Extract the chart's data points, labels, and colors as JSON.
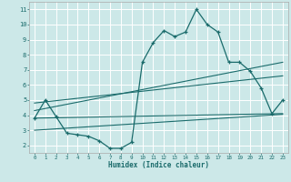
{
  "xlabel": "Humidex (Indice chaleur)",
  "bg_color": "#cce8e8",
  "grid_color": "#ffffff",
  "line_color": "#1a6b6b",
  "xlim": [
    -0.5,
    23.5
  ],
  "ylim": [
    1.5,
    11.5
  ],
  "yticks": [
    2,
    3,
    4,
    5,
    6,
    7,
    8,
    9,
    10,
    11
  ],
  "xticks": [
    0,
    1,
    2,
    3,
    4,
    5,
    6,
    7,
    8,
    9,
    10,
    11,
    12,
    13,
    14,
    15,
    16,
    17,
    18,
    19,
    20,
    21,
    22,
    23
  ],
  "line1_x": [
    0,
    1,
    2,
    3,
    4,
    5,
    6,
    7,
    8,
    9,
    10,
    11,
    12,
    13,
    14,
    15,
    16,
    17,
    18,
    19,
    20,
    21,
    22,
    23
  ],
  "line1_y": [
    3.8,
    5.0,
    3.9,
    2.8,
    2.7,
    2.6,
    2.3,
    1.8,
    1.8,
    2.2,
    7.5,
    8.8,
    9.6,
    9.2,
    9.5,
    11.0,
    10.0,
    9.5,
    7.5,
    7.5,
    6.9,
    5.8,
    4.1,
    5.0
  ],
  "line2_x": [
    0,
    23
  ],
  "line2_y": [
    3.8,
    4.1
  ],
  "line3_x": [
    0,
    23
  ],
  "line3_y": [
    4.3,
    7.5
  ],
  "line4_x": [
    0,
    23
  ],
  "line4_y": [
    3.0,
    4.05
  ],
  "line5_x": [
    0,
    23
  ],
  "line5_y": [
    4.8,
    6.6
  ]
}
